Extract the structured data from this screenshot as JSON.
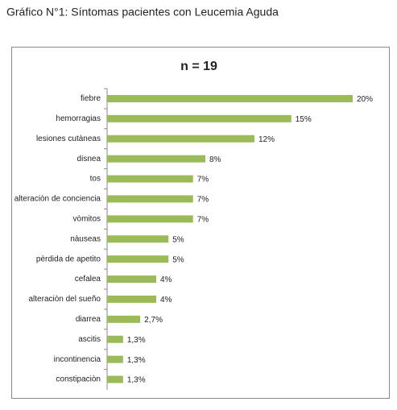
{
  "chart_data": {
    "type": "bar",
    "orientation": "horizontal",
    "title": "Gráfico N°1: Síntomas pacientes con Leucemia Aguda",
    "subtitle": "n = 19",
    "categories": [
      "fiebre",
      "hemorragias",
      "lesiones cutàneas",
      "disnea",
      "tos",
      "alteraciòn de conciencia",
      "vòmitos",
      "nàuseas",
      "pèrdida de apetito",
      "cefalea",
      "alteraciòn del sueño",
      "diarrea",
      "ascitis",
      "incontinencia",
      "constipaciòn"
    ],
    "values": [
      20,
      15,
      12,
      8,
      7,
      7,
      7,
      5,
      5,
      4,
      4,
      2.7,
      1.3,
      1.3,
      1.3
    ],
    "value_labels": [
      "20%",
      "15%",
      "12%",
      "8%",
      "7%",
      "7%",
      "7%",
      "5%",
      "5%",
      "4%",
      "4%",
      "2,7%",
      "1,3%",
      "1,3%",
      "1,3%"
    ],
    "color": "#9bbb59"
  }
}
